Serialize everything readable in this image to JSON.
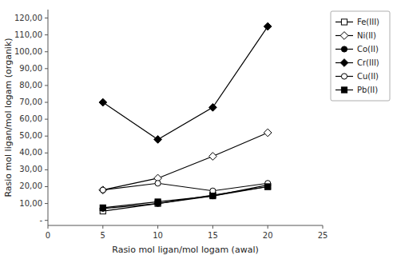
{
  "chart_data": {
    "type": "line",
    "xlabel": "Rasio mol ligan/mol logam (awal)",
    "ylabel": "Rasio mol ligan/mol logam (organik)",
    "x": [
      5,
      10,
      15,
      20
    ],
    "series": [
      {
        "name": "Fe(III)",
        "color": "#000000",
        "marker": "square-open",
        "values": [
          5.5,
          10.0,
          15.0,
          20.0
        ]
      },
      {
        "name": "Ni(II)",
        "color": "#000000",
        "marker": "diamond-open",
        "values": [
          18.0,
          25.0,
          38.0,
          52.0
        ]
      },
      {
        "name": "Co(II)",
        "color": "#000000",
        "marker": "circle-filled",
        "values": [
          7.0,
          10.0,
          14.5,
          21.0
        ]
      },
      {
        "name": "Cr(III)",
        "color": "#000000",
        "marker": "diamond-filled",
        "values": [
          70.0,
          48.0,
          67.0,
          115.0
        ]
      },
      {
        "name": "Cu(II)",
        "color": "#000000",
        "marker": "circle-open",
        "values": [
          18.0,
          22.0,
          17.5,
          22.0
        ]
      },
      {
        "name": "Pb(II)",
        "color": "#000000",
        "marker": "square-filled",
        "values": [
          7.5,
          11.0,
          14.5,
          20.0
        ]
      }
    ],
    "xlim": [
      0,
      25
    ],
    "ylim": [
      -3,
      125
    ],
    "xticks": [
      0,
      5,
      10,
      15,
      20,
      25
    ],
    "yticks": [
      {
        "value": 0,
        "label": "-"
      },
      {
        "value": 10,
        "label": "10,00"
      },
      {
        "value": 20,
        "label": "20,00"
      },
      {
        "value": 30,
        "label": "30,00"
      },
      {
        "value": 40,
        "label": "40,00"
      },
      {
        "value": 50,
        "label": "50,00"
      },
      {
        "value": 60,
        "label": "60,00"
      },
      {
        "value": 70,
        "label": "70,00"
      },
      {
        "value": 80,
        "label": "80,00"
      },
      {
        "value": 90,
        "label": "90,00"
      },
      {
        "value": 100,
        "label": "100,00"
      },
      {
        "value": 110,
        "label": "110,00"
      },
      {
        "value": 120,
        "label": "120,00"
      }
    ],
    "grid": false,
    "legend": "right"
  }
}
